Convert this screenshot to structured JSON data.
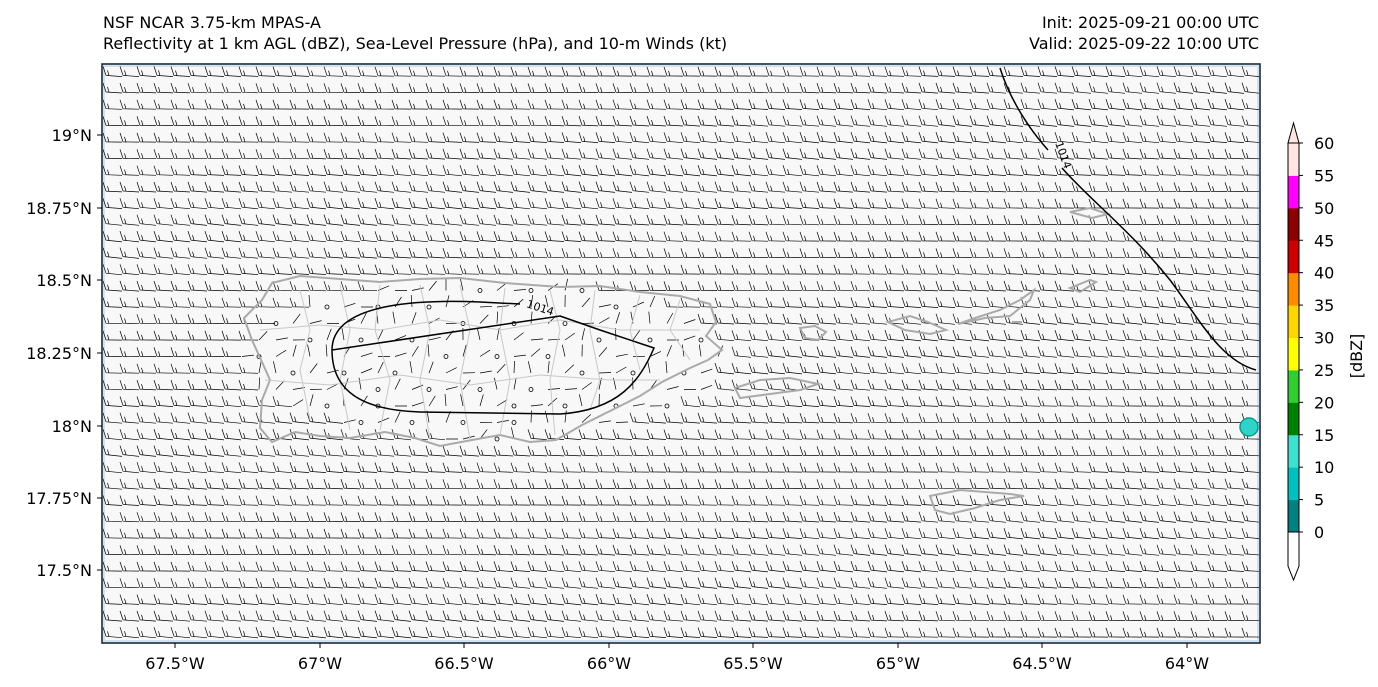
{
  "header": {
    "title_line1": "NSF NCAR 3.75-km MPAS-A",
    "title_line2": "Reflectivity at 1 km AGL (dBZ), Sea-Level Pressure (hPa), and 10-m Winds (kt)",
    "init": "Init: 2025-09-21 00:00 UTC",
    "valid": "Valid: 2025-09-22 10:00 UTC"
  },
  "map": {
    "lat_labels": [
      "19°N",
      "18.75°N",
      "18.5°N",
      "18.25°N",
      "18°N",
      "17.75°N",
      "17.5°N"
    ],
    "lon_labels": [
      "67.5°W",
      "67°W",
      "66.5°W",
      "66°W",
      "65.5°W",
      "65°W",
      "64.5°W",
      "64°W"
    ],
    "isobar_labels": [
      "1014",
      "1014"
    ]
  },
  "colorbar": {
    "label": "[dBZ]",
    "ticks": [
      "0",
      "5",
      "10",
      "15",
      "20",
      "25",
      "30",
      "35",
      "40",
      "45",
      "50",
      "55",
      "60"
    ],
    "colors": [
      "#008080",
      "#00c0c0",
      "#40e0d0",
      "#008000",
      "#32cd32",
      "#ffff00",
      "#ffd700",
      "#ff8c00",
      "#cc0000",
      "#8b0000",
      "#ff00ff",
      "#ffe4e1"
    ]
  }
}
